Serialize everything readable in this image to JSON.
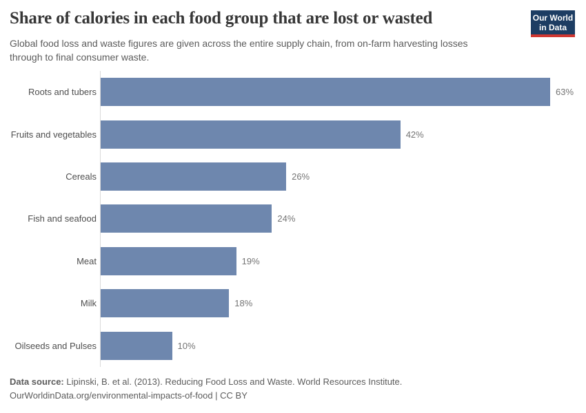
{
  "header": {
    "title": "Share of calories in each food group that are lost or wasted",
    "subtitle": "Global food loss and waste figures are given across the entire supply chain, from on-farm harvesting losses through to final consumer waste.",
    "logo": {
      "line1": "Our World",
      "line2": "in Data",
      "bg_color": "#1d3d63",
      "stripe_color": "#d13832"
    }
  },
  "chart_data": {
    "type": "bar",
    "orientation": "horizontal",
    "title": "Share of calories in each food group that are lost or wasted",
    "categories": [
      "Roots and tubers",
      "Fruits and vegetables",
      "Cereals",
      "Fish and seafood",
      "Meat",
      "Milk",
      "Oilseeds and Pulses"
    ],
    "values": [
      63,
      42,
      26,
      24,
      19,
      18,
      10
    ],
    "value_labels": [
      "63%",
      "42%",
      "26%",
      "24%",
      "19%",
      "18%",
      "10%"
    ],
    "unit": "%",
    "xlim": [
      0,
      63
    ],
    "grid": false,
    "value_axis_visible": false,
    "bar_color": "#6e87ae",
    "axis_line_color": "#d9d9d9"
  },
  "footer": {
    "source_label": "Data source:",
    "source_text": " Lipinski, B. et al. (2013). Reducing Food Loss and Waste. World Resources Institute.",
    "license_line": "OurWorldinData.org/environmental-impacts-of-food | CC BY"
  }
}
